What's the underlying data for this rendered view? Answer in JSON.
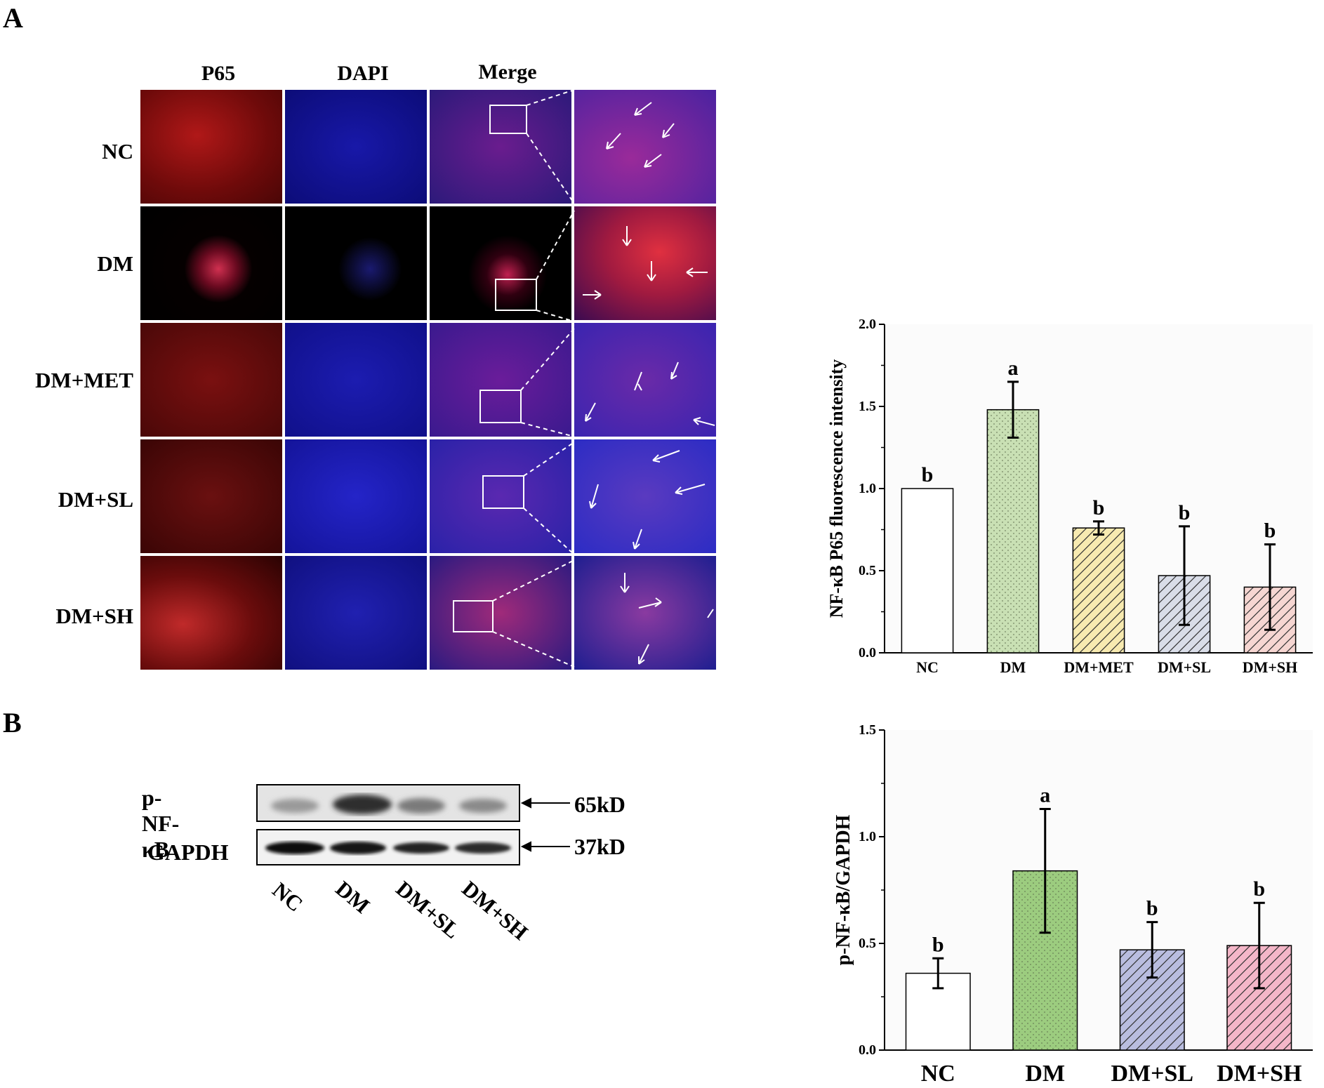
{
  "panels": {
    "a_letter": "A",
    "b_letter": "B"
  },
  "micrograph": {
    "columns": [
      "P65",
      "DAPI",
      "Merge"
    ],
    "rows": [
      "NC",
      "DM",
      "DM+MET",
      "DM+SL",
      "DM+SH"
    ]
  },
  "western": {
    "bands": [
      {
        "protein": "p-NF-κB",
        "size": "65kD"
      },
      {
        "protein": "GAPDH",
        "size": "37kD"
      }
    ],
    "lanes": [
      "NC",
      "DM",
      "DM+SL",
      "DM+SH"
    ]
  },
  "chart_data": [
    {
      "type": "bar",
      "title": "",
      "xlabel": "",
      "ylabel": "NF-κB P65 fluorescence intensity",
      "ylim": [
        0,
        2.0
      ],
      "yticks": [
        "0.0",
        "0.5",
        "1.0",
        "1.5",
        "2.0"
      ],
      "categories": [
        "NC",
        "DM",
        "DM+MET",
        "DM+SL",
        "DM+SH"
      ],
      "values": [
        1.0,
        1.48,
        0.76,
        0.47,
        0.4
      ],
      "errors": [
        0.0,
        0.17,
        0.04,
        0.3,
        0.26
      ],
      "letters": [
        "b",
        "a",
        "b",
        "b",
        "b"
      ],
      "fills": [
        "#ffffff",
        "#c9e0b4",
        "#f7eab0",
        "#d9dde8",
        "#f6d6d2"
      ],
      "patterns": [
        "none",
        "dots",
        "hatch",
        "hatch",
        "hatch"
      ],
      "grid": false
    },
    {
      "type": "bar",
      "title": "",
      "xlabel": "",
      "ylabel": "p-NF-κB/GAPDH",
      "ylim": [
        0,
        1.5
      ],
      "yticks": [
        "0.0",
        "0.5",
        "1.0",
        "1.5"
      ],
      "categories": [
        "NC",
        "DM",
        "DM+SL",
        "DM+SH"
      ],
      "values": [
        0.36,
        0.84,
        0.47,
        0.49
      ],
      "errors": [
        0.07,
        0.29,
        0.13,
        0.2
      ],
      "letters": [
        "b",
        "a",
        "b",
        "b"
      ],
      "fills": [
        "#ffffff",
        "#9ccc7f",
        "#b9bddf",
        "#f4b6c8"
      ],
      "patterns": [
        "none",
        "dots",
        "hatch",
        "hatch"
      ],
      "grid": false
    }
  ]
}
